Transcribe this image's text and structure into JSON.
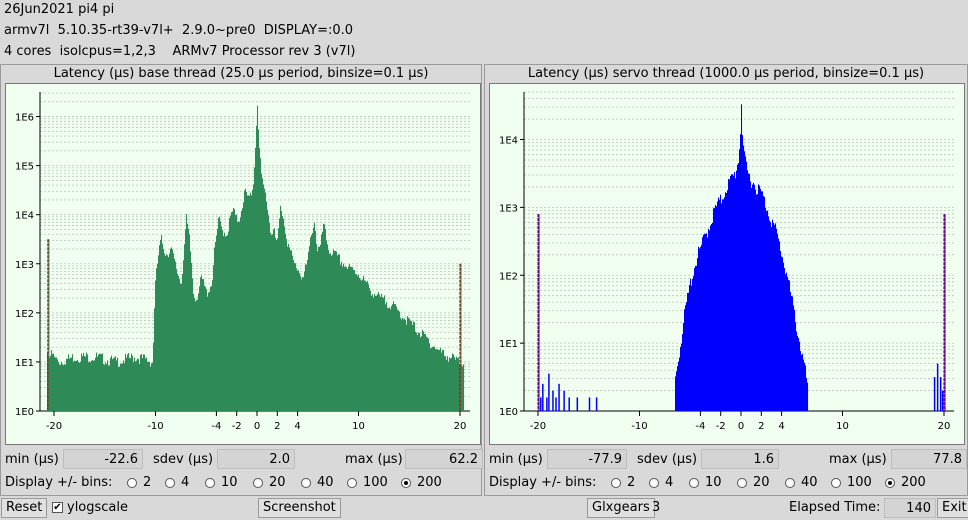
{
  "header": {
    "line1": "26Jun2021 pi4 pi",
    "line2": "armv7l  5.10.35-rt39-v7l+  2.9.0~pre0  DISPLAY=:0.0",
    "line3": "4 cores  isolcpus=1,2,3    ARMv7 Processor rev 3 (v7l)"
  },
  "base": {
    "title": "Latency (µs) base thread (25.0 µs period, binsize=0.1 µs)",
    "min_label": "min (µs)",
    "min": "-22.6",
    "sdev_label": "sdev (µs)",
    "sdev": "2.0",
    "max_label": "max (µs)",
    "max": "62.2"
  },
  "servo": {
    "title": "Latency (µs) servo thread (1000.0 µs period, binsize=0.1 µs)",
    "min_label": "min (µs)",
    "min": "-77.9",
    "sdev_label": "sdev (µs)",
    "sdev": "1.6",
    "max_label": "max (µs)",
    "max": "77.8"
  },
  "bins": {
    "label": "Display +/- bins:",
    "options": [
      "2",
      "4",
      "10",
      "20",
      "40",
      "100",
      "200"
    ],
    "selected": "200"
  },
  "footer": {
    "reset": "Reset",
    "ylogscale": "ylogscale",
    "ylogscale_checked": "✔",
    "screenshot": "Screenshot",
    "glxgears": "Glxgears",
    "glx_count": "3",
    "elapsed_label": "Elapsed Time:",
    "elapsed": "140",
    "exit": "Exit"
  },
  "chart_data": [
    {
      "type": "bar",
      "title": "Latency (µs) base thread (25.0 µs period, binsize=0.1 µs)",
      "color": "#2e8b57",
      "xlim": [
        -20,
        20
      ],
      "ylim_log10": [
        0,
        6.5
      ],
      "y_scale": "log",
      "x_ticks": [
        "-20",
        "-10",
        "-4",
        "-2",
        "0",
        "2",
        "4",
        "10",
        "20"
      ],
      "x_tick_values": [
        -20,
        -10,
        -4,
        -2,
        0,
        2,
        4,
        10,
        20
      ],
      "y_ticks": [
        "1E0",
        "1E1",
        "1E2",
        "1E3",
        "1E4",
        "1E5",
        "1E6"
      ],
      "envelope_x": [
        -20.6,
        -19.5,
        -18,
        -16,
        -14,
        -12,
        -10.3,
        -10.1,
        -9.8,
        -9.5,
        -9,
        -8.5,
        -8,
        -7.5,
        -7,
        -6.7,
        -6.5,
        -6.3,
        -6,
        -5.5,
        -5,
        -4.5,
        -4.2,
        -4,
        -3.8,
        -3.5,
        -3,
        -2.7,
        -2.4,
        -2.1,
        -1.8,
        -1.5,
        -1.2,
        -1,
        -0.7,
        -0.4,
        -0.15,
        0,
        0.15,
        0.4,
        0.7,
        1,
        1.3,
        1.6,
        1.8,
        2,
        2.3,
        2.6,
        3,
        3.3,
        3.6,
        4,
        4.5,
        5,
        5.3,
        5.6,
        5.9,
        6.2,
        6.5,
        7,
        8,
        9,
        10,
        11,
        12,
        13,
        14,
        15,
        16,
        17,
        18,
        19,
        19.8,
        20.2
      ],
      "envelope_log10": [
        1.2,
        1.0,
        1.1,
        1.1,
        1.0,
        1.1,
        1.0,
        2.5,
        3.1,
        3.5,
        3.2,
        3.3,
        2.9,
        2.6,
        3.9,
        3.5,
        3.0,
        2.4,
        2.3,
        2.7,
        2.4,
        2.6,
        3.3,
        3.6,
        3.9,
        3.7,
        3.6,
        3.9,
        4.1,
        3.9,
        3.9,
        4.2,
        4.5,
        4.3,
        4.4,
        4.6,
        5.6,
        6.3,
        5.5,
        4.7,
        4.5,
        4.2,
        3.6,
        3.8,
        3.4,
        3.5,
        4.2,
        3.9,
        3.4,
        3.2,
        3.0,
        2.9,
        2.7,
        3.1,
        3.6,
        3.9,
        3.3,
        3.3,
        3.8,
        3.3,
        3.1,
        2.9,
        2.8,
        2.5,
        2.3,
        2.2,
        2.0,
        1.8,
        1.6,
        1.4,
        1.2,
        1.1,
        1.0,
        1.0
      ],
      "marker_x": [
        -20.6,
        20.0
      ],
      "marker_log10": [
        3.5,
        3.0
      ]
    },
    {
      "type": "bar",
      "title": "Latency (µs) servo thread (1000.0 µs period, binsize=0.1 µs)",
      "color": "#0000ff",
      "xlim": [
        -20,
        20
      ],
      "ylim_log10": [
        0,
        4.7
      ],
      "y_scale": "log",
      "x_ticks": [
        "-20",
        "-10",
        "-4",
        "-2",
        "0",
        "2",
        "4",
        "10",
        "20"
      ],
      "x_tick_values": [
        -20,
        -10,
        -4,
        -2,
        0,
        2,
        4,
        10,
        20
      ],
      "y_ticks": [
        "1E0",
        "1E1",
        "1E2",
        "1E3",
        "1E4"
      ],
      "envelope_x": [
        -6.5,
        -6,
        -5.5,
        -5,
        -4.5,
        -4,
        -3.5,
        -3,
        -2.5,
        -2,
        -1.5,
        -1,
        -0.6,
        -0.3,
        -0.1,
        0,
        0.1,
        0.3,
        0.6,
        1,
        1.5,
        2,
        2.5,
        3,
        3.5,
        4,
        4.5,
        5,
        5.5,
        6,
        6.5
      ],
      "envelope_log10": [
        0.5,
        1.0,
        1.5,
        1.9,
        2.2,
        2.4,
        2.6,
        2.8,
        3.0,
        3.1,
        3.3,
        3.4,
        3.5,
        3.7,
        4.1,
        4.6,
        4.1,
        3.7,
        3.5,
        3.4,
        3.3,
        3.2,
        3.0,
        2.8,
        2.6,
        2.3,
        2.0,
        1.6,
        1.2,
        0.8,
        0.4
      ],
      "outliers_x": [
        -19.8,
        -19.6,
        -19.2,
        -19,
        -18.6,
        -18.3,
        -18,
        -17.5,
        -17,
        -16.2,
        -15,
        -14.3,
        19,
        19.3,
        19.6,
        19.8
      ],
      "outliers_log10": [
        0.2,
        0.4,
        0.2,
        0.55,
        0.3,
        0.2,
        0.4,
        0.3,
        0.2,
        0.2,
        0.2,
        0.2,
        0.5,
        0.7,
        0.5,
        0.3
      ],
      "marker_x": [
        -20.0,
        20.0
      ],
      "marker_log10": [
        2.9,
        2.9
      ]
    }
  ]
}
